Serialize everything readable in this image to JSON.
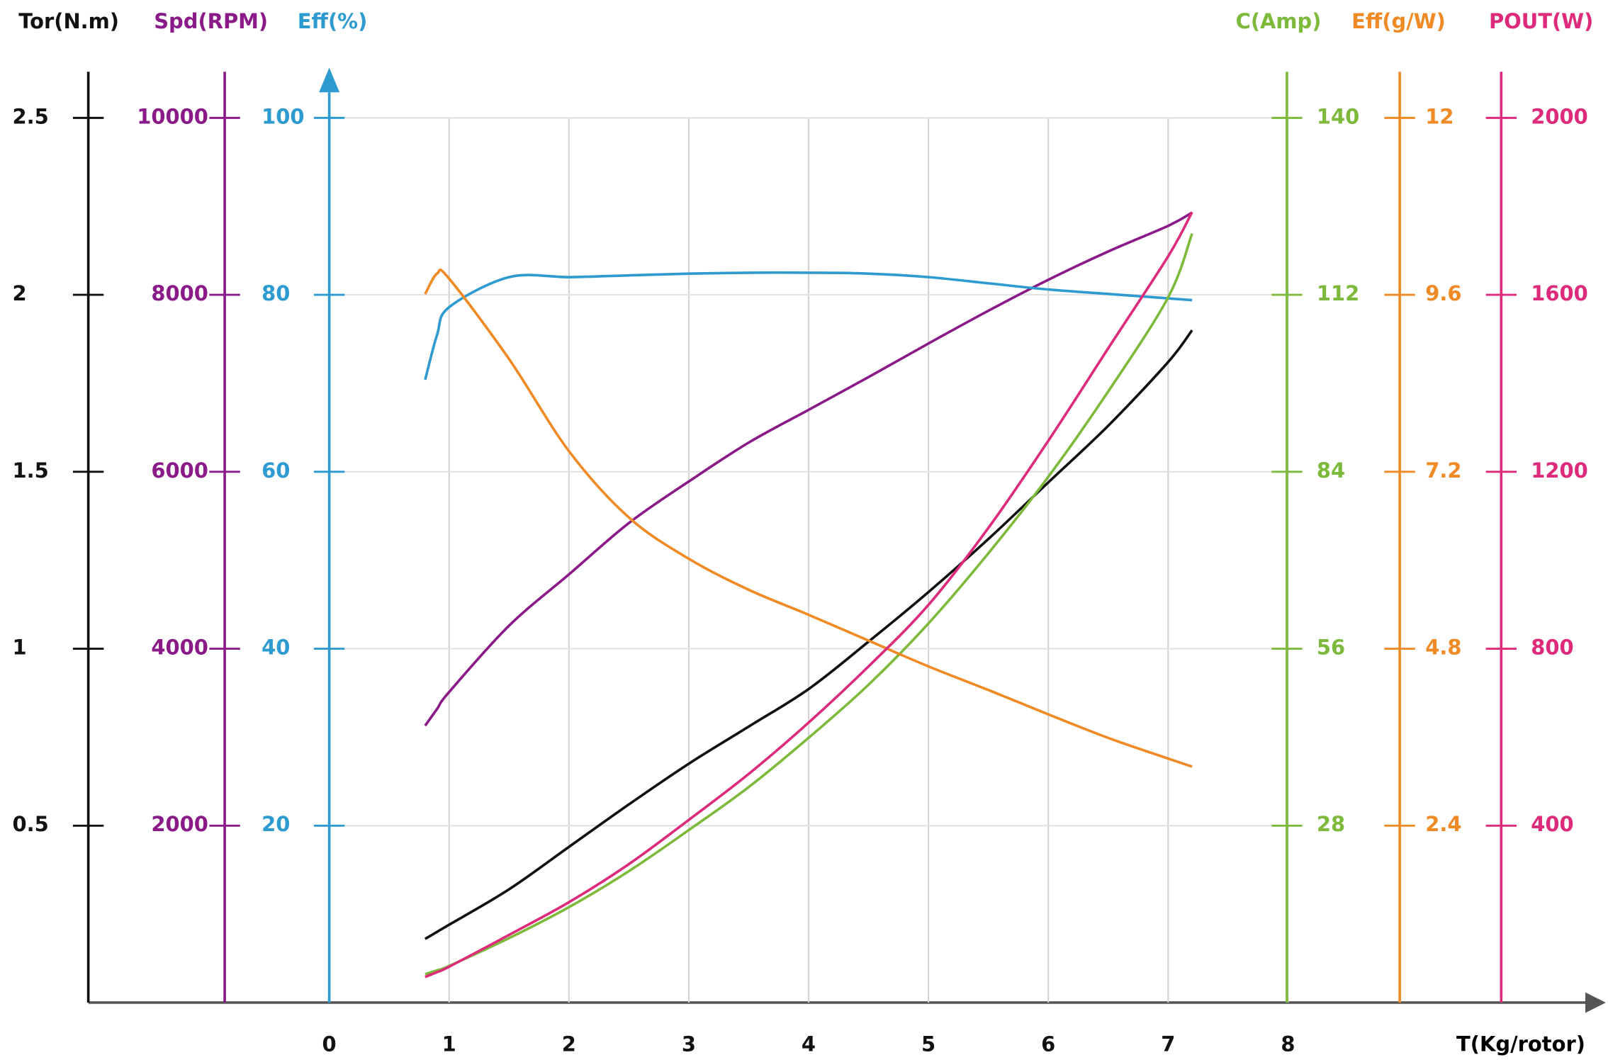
{
  "chart_data": {
    "type": "line",
    "x_label": "T(Kg/rotor)",
    "x": [
      0.8,
      0.9,
      1,
      1.5,
      2,
      2.5,
      3,
      3.5,
      4,
      4.5,
      5,
      5.5,
      6,
      6.5,
      7,
      7.2
    ],
    "xlim": [
      0,
      8
    ],
    "xticks": [
      0,
      1,
      2,
      3,
      4,
      5,
      6,
      7,
      8
    ],
    "grid": true,
    "series": [
      {
        "name": "Tor(N.m)",
        "color": "#111111",
        "ylim": [
          0,
          2.5
        ],
        "yticks": [
          0.5,
          1,
          1.5,
          2,
          2.5
        ],
        "values": [
          0.18,
          0.2,
          0.22,
          0.32,
          0.44,
          0.56,
          0.675,
          0.78,
          0.886,
          1.02,
          1.16,
          1.31,
          1.47,
          1.63,
          1.81,
          1.9
        ]
      },
      {
        "name": "Spd(RPM)",
        "color": "#8b1a89",
        "ylim": [
          0,
          10000
        ],
        "yticks": [
          2000,
          4000,
          6000,
          8000,
          10000
        ],
        "values": [
          3130,
          3320,
          3510,
          4260,
          4840,
          5420,
          5890,
          6330,
          6700,
          7070,
          7450,
          7820,
          8170,
          8490,
          8780,
          8930
        ]
      },
      {
        "name": "Eff(%)",
        "color": "#2e9bd0",
        "ylim": [
          0,
          100
        ],
        "yticks": [
          20,
          40,
          60,
          80,
          100
        ],
        "values": [
          70.4,
          75.5,
          78.6,
          82.0,
          82.0,
          82.2,
          82.4,
          82.5,
          82.5,
          82.4,
          82.0,
          81.3,
          80.6,
          80.1,
          79.6,
          79.4
        ]
      },
      {
        "name": "C(Amp)",
        "color": "#7dba3c",
        "ylim": [
          0,
          140
        ],
        "yticks": [
          28,
          56,
          84,
          112,
          140
        ],
        "values": [
          4.5,
          5.1,
          5.8,
          10.2,
          15.1,
          20.8,
          27.3,
          34.1,
          41.9,
          50.3,
          60.0,
          71.1,
          83.2,
          96.7,
          111.6,
          121.7
        ]
      },
      {
        "name": "Eff(g/W)",
        "color": "#ef8a24",
        "ylim": [
          0,
          12
        ],
        "yticks": [
          2.4,
          4.8,
          7.2,
          9.6,
          12
        ],
        "values": [
          9.61,
          9.89,
          9.82,
          8.73,
          7.48,
          6.58,
          6.02,
          5.6,
          5.26,
          4.91,
          4.56,
          4.24,
          3.91,
          3.59,
          3.31,
          3.2
        ]
      },
      {
        "name": "POUT(W)",
        "color": "#dd2a7b",
        "ylim": [
          0,
          2000
        ],
        "yticks": [
          400,
          800,
          1200,
          1600,
          2000
        ],
        "values": [
          58,
          69,
          81,
          153,
          227,
          313,
          413,
          517,
          633,
          760,
          899,
          1073,
          1270,
          1479,
          1687,
          1787
        ]
      }
    ]
  }
}
